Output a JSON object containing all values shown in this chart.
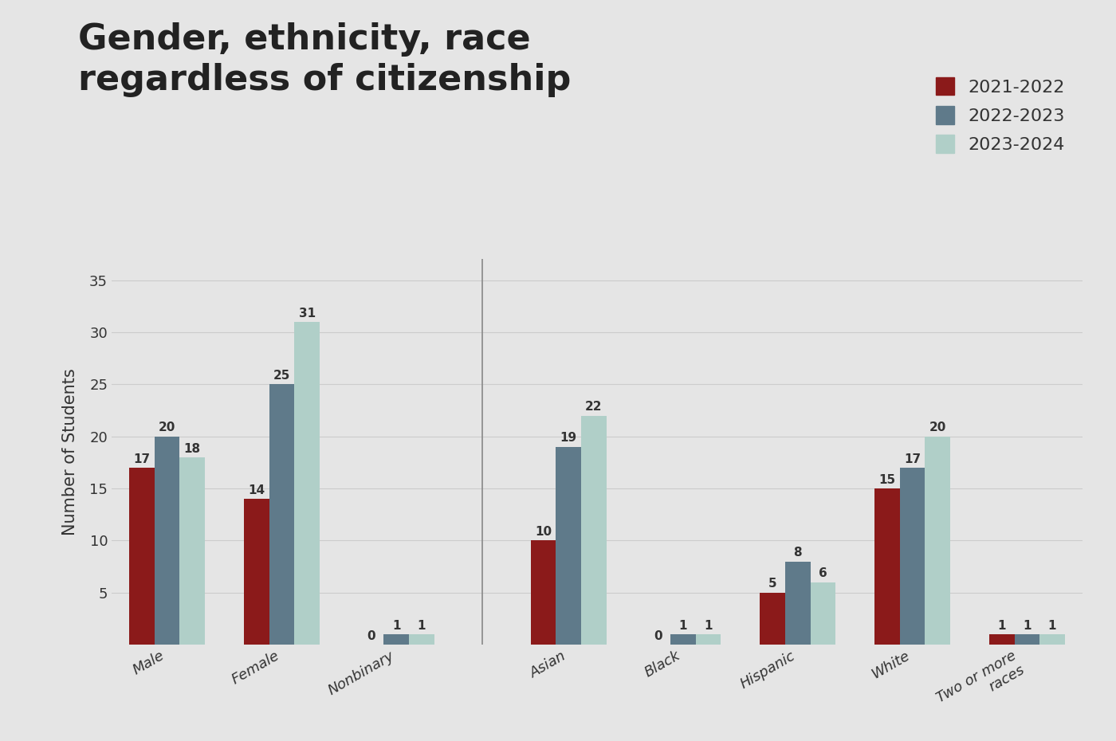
{
  "title": "Gender, ethnicity, race\nregardless of citizenship",
  "title_fontsize": 32,
  "ylabel": "Number of Students",
  "ylabel_fontsize": 15,
  "background_color": "#e5e5e5",
  "categories": [
    "Male",
    "Female",
    "Nonbinary",
    "Asian",
    "Black",
    "Hispanic",
    "White",
    "Two or more\nraces"
  ],
  "series": {
    "2021-2022": [
      17,
      14,
      0,
      10,
      0,
      5,
      15,
      1
    ],
    "2022-2023": [
      20,
      25,
      1,
      19,
      1,
      8,
      17,
      1
    ],
    "2023-2024": [
      18,
      31,
      1,
      22,
      1,
      6,
      20,
      1
    ]
  },
  "colors": {
    "2021-2022": "#8B1A1A",
    "2022-2023": "#5F7A8A",
    "2023-2024": "#B0CFC8"
  },
  "legend_labels": [
    "2021-2022",
    "2022-2023",
    "2023-2024"
  ],
  "ylim": [
    0,
    37
  ],
  "yticks": [
    5,
    10,
    15,
    20,
    25,
    30,
    35
  ],
  "bar_width": 0.22,
  "label_fontsize": 11,
  "tick_fontsize": 13,
  "legend_fontsize": 16
}
